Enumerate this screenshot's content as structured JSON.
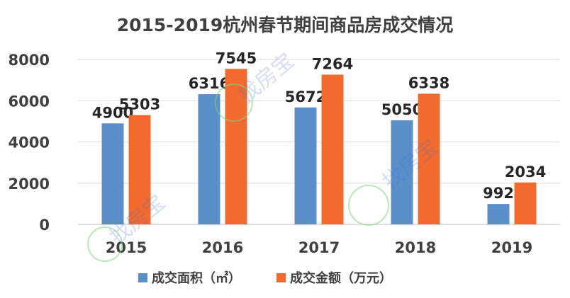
{
  "watermark_text": "找房宝",
  "chart_data": {
    "type": "bar",
    "title": "2015-2019杭州春节期间商品房成交情况",
    "categories": [
      "2015",
      "2016",
      "2017",
      "2018",
      "2019"
    ],
    "series": [
      {
        "name": "成交面积（㎡）",
        "values": [
          4900,
          6316,
          5672,
          5050,
          992
        ],
        "color": "#5b8fc9"
      },
      {
        "name": "成交金额（万元）",
        "values": [
          5303,
          7545,
          7264,
          6338,
          2034
        ],
        "color": "#f26a2e"
      }
    ],
    "ylim": [
      0,
      8000
    ],
    "yticks": [
      0,
      2000,
      4000,
      6000,
      8000
    ],
    "xlabel": "",
    "ylabel": "",
    "grid": true,
    "legend_position": "bottom"
  }
}
